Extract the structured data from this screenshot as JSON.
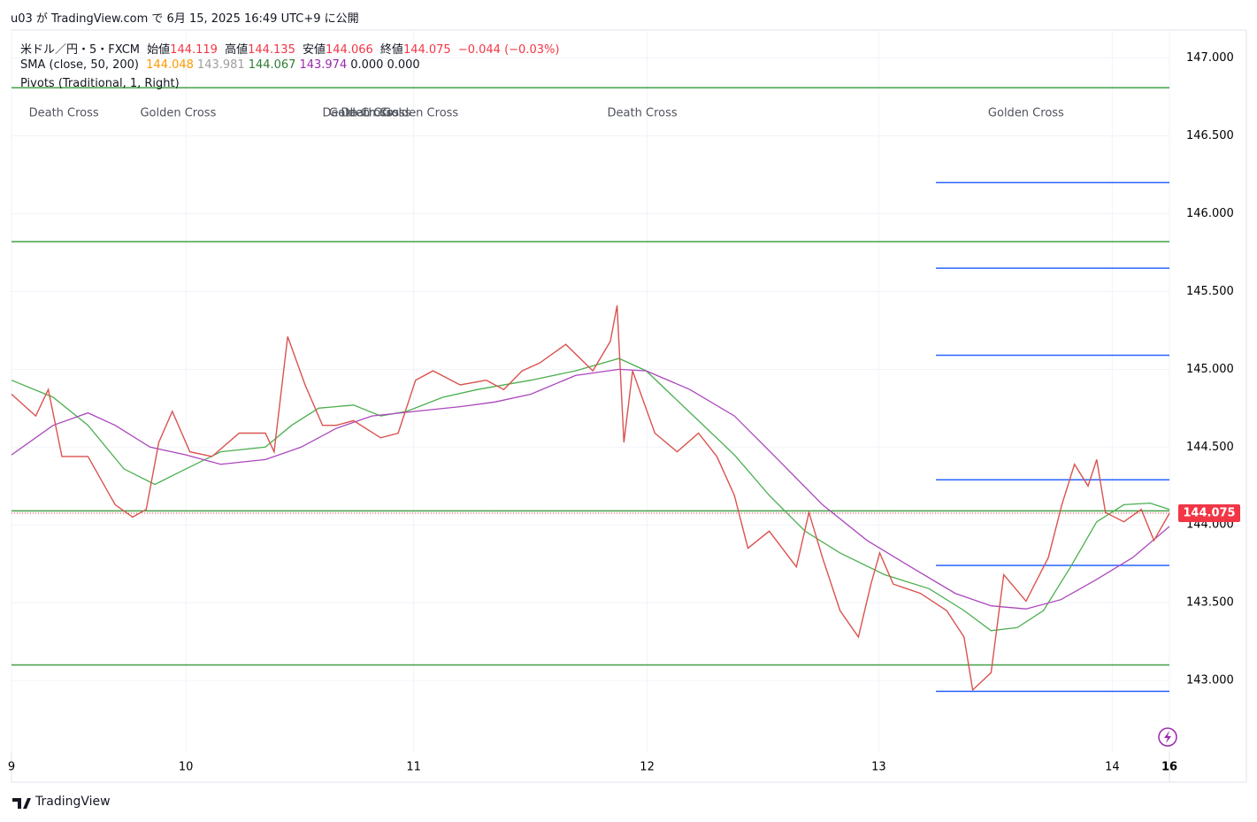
{
  "header": {
    "publisher": "u03 が TradingView.com で 6月 15, 2025 16:49 UTC+9 に公開",
    "brand": "TradingView"
  },
  "legend": {
    "symbol": "米ドル／円・5・FXCM",
    "open_label": "始値",
    "open": "144.119",
    "high_label": "高値",
    "high": "144.135",
    "low_label": "安値",
    "low": "144.066",
    "close_label": "終値",
    "close": "144.075",
    "change": "−0.044 (−0.03%)",
    "sma": "SMA (close, 50, 200)",
    "sma_values": [
      {
        "text": "144.048",
        "color": "#ff9800"
      },
      {
        "text": "143.981",
        "color": "#9e9e9e"
      },
      {
        "text": "144.067",
        "color": "#2e7d32"
      },
      {
        "text": "143.974",
        "color": "#9c27b0"
      },
      {
        "text": "0.000",
        "color": "#131722"
      },
      {
        "text": "0.000",
        "color": "#131722"
      }
    ],
    "pivots": "Pivots (Traditional, 1, Right)"
  },
  "chart_data": {
    "type": "line",
    "x": [
      0,
      2.5,
      3.8,
      5.2,
      7.9,
      10.7,
      12.5,
      13.9,
      15.2,
      16.6,
      18.4,
      20.7,
      23.5,
      26.2,
      27.1,
      28.5,
      30.3,
      32.1,
      33.5,
      35.3,
      38.1,
      39.9,
      41.7,
      43.5,
      46.3,
      49.0,
      50.8,
      52.7,
      54.5,
      57.2,
      60.0,
      61.8,
      62.5,
      63.2,
      64.1,
      66.4,
      68.7,
      70.9,
      72.8,
      74.6,
      76.0,
      78.2,
      81.0,
      82.3,
      83.7,
      85.5,
      87.4,
      88.7,
      89.6,
      91.0,
      93.8,
      96.5,
      98.3,
      99.2,
      101.1,
      102.4,
      104.7,
      107.0,
      108.4,
      109.7,
      111.1,
      112.0,
      112.9,
      114.8,
      116.6,
      117.9,
      119.5
    ],
    "values": [
      144.84,
      144.7,
      144.87,
      144.44,
      144.44,
      144.13,
      144.05,
      144.1,
      144.53,
      144.73,
      144.47,
      144.44,
      144.59,
      144.59,
      144.47,
      145.21,
      144.9,
      144.64,
      144.64,
      144.67,
      144.56,
      144.59,
      144.93,
      144.99,
      144.9,
      144.93,
      144.87,
      144.99,
      145.04,
      145.16,
      144.99,
      145.18,
      145.41,
      144.53,
      144.99,
      144.59,
      144.47,
      144.59,
      144.44,
      144.19,
      143.85,
      143.96,
      143.73,
      144.08,
      143.79,
      143.45,
      143.28,
      143.62,
      143.82,
      143.62,
      143.56,
      143.45,
      143.28,
      142.94,
      143.05,
      143.68,
      143.51,
      143.79,
      144.13,
      144.39,
      144.25,
      144.42,
      144.08,
      144.02,
      144.1,
      143.9,
      144.075
    ],
    "color": "#d9534f",
    "series": [
      {
        "color": "#4caf50",
        "x": [
          0,
          4.3,
          7.9,
          11.6,
          14.8,
          18.0,
          21.6,
          26.2,
          28.9,
          31.7,
          35.3,
          38.1,
          40.8,
          44.5,
          48.1,
          53.6,
          58.2,
          62.7,
          65.5,
          70.9,
          74.6,
          78.2,
          81.9,
          85.5,
          90.1,
          94.7,
          98.3,
          101.1,
          103.8,
          106.5,
          109.3,
          112.0,
          114.8,
          117.5,
          119.5
        ],
        "values": [
          144.93,
          144.82,
          144.64,
          144.36,
          144.26,
          144.36,
          144.47,
          144.5,
          144.64,
          144.75,
          144.77,
          144.7,
          144.73,
          144.82,
          144.87,
          144.93,
          144.99,
          145.07,
          144.99,
          144.67,
          144.45,
          144.19,
          143.96,
          143.82,
          143.68,
          143.59,
          143.45,
          143.32,
          143.34,
          143.45,
          143.73,
          144.02,
          144.13,
          144.14,
          144.1
        ]
      },
      {
        "color": "#ab47bc",
        "x": [
          0,
          4.3,
          7.9,
          10.7,
          14.3,
          18.0,
          21.6,
          26.2,
          29.9,
          33.5,
          37.2,
          41.7,
          46.3,
          49.9,
          53.6,
          58.2,
          62.7,
          65.5,
          70.0,
          74.6,
          79.1,
          83.7,
          88.3,
          92.8,
          97.4,
          101.1,
          104.7,
          108.3,
          112.0,
          115.7,
          119.5
        ],
        "values": [
          144.45,
          144.64,
          144.72,
          144.64,
          144.5,
          144.45,
          144.39,
          144.42,
          144.5,
          144.62,
          144.7,
          144.73,
          144.76,
          144.79,
          144.84,
          144.96,
          145.0,
          144.99,
          144.87,
          144.7,
          144.42,
          144.13,
          143.9,
          143.73,
          143.56,
          143.48,
          143.46,
          143.52,
          143.65,
          143.79,
          143.99
        ]
      }
    ],
    "pivot_levels": [
      146.81,
      145.82,
      144.09,
      143.1
    ],
    "pivot_color": "#43a047",
    "range_levels": [
      146.2,
      145.65,
      145.09,
      144.29,
      143.74,
      142.93
    ],
    "range_start_x": 95.4,
    "range_color": "#2962ff",
    "annotations": [
      {
        "text": "Death Cross",
        "x": 5.4
      },
      {
        "text": "Golden Cross",
        "x": 17.2
      },
      {
        "text": "Death Cross",
        "x": 35.7
      },
      {
        "text": "Golden Cross",
        "x": 36.7
      },
      {
        "text": "Death Cross",
        "x": 37.6
      },
      {
        "text": "Golden Cross",
        "x": 42.2
      },
      {
        "text": "Death Cross",
        "x": 65.1
      },
      {
        "text": "Golden Cross",
        "x": 104.7
      }
    ],
    "ylim": [
      142.54,
      147.18
    ],
    "yticks": [
      {
        "value": 143,
        "label": "143.000"
      },
      {
        "value": 143.5,
        "label": "143.500"
      },
      {
        "value": 144,
        "label": "144.000"
      },
      {
        "value": 144.5,
        "label": "144.500"
      },
      {
        "value": 145,
        "label": "145.000"
      },
      {
        "value": 145.5,
        "label": "145.500"
      },
      {
        "value": 146,
        "label": "146.000"
      },
      {
        "value": 146.5,
        "label": "146.500"
      },
      {
        "value": 147,
        "label": "147.000"
      }
    ],
    "xlim": [
      0,
      119.5
    ],
    "xticks": [
      {
        "value": 0,
        "label": "9"
      },
      {
        "value": 18,
        "label": "10"
      },
      {
        "value": 41.5,
        "label": "11"
      },
      {
        "value": 65.6,
        "label": "12"
      },
      {
        "value": 89.5,
        "label": "13"
      },
      {
        "value": 113.6,
        "label": "14"
      },
      {
        "value": 119.5,
        "label": "16"
      }
    ],
    "last_price": 144.075,
    "last_color": "#f23645",
    "grid": true
  }
}
